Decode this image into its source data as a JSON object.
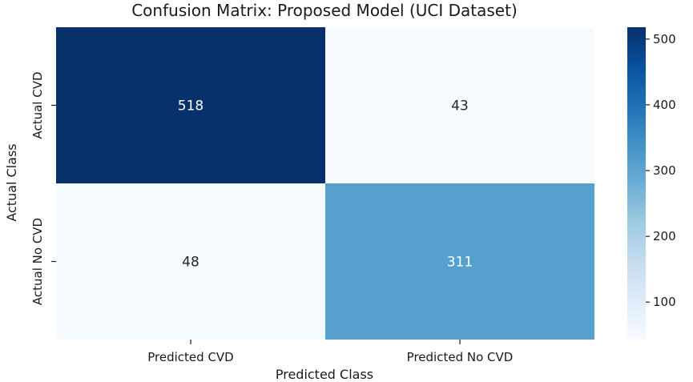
{
  "chart_data": {
    "type": "heatmap",
    "title": "Confusion Matrix: Proposed Model (UCI Dataset)",
    "xlabel": "Predicted Class",
    "ylabel": "Actual Class",
    "x_categories": [
      "Predicted CVD",
      "Predicted No CVD"
    ],
    "y_categories": [
      "Actual CVD",
      "Actual No CVD"
    ],
    "values": [
      [
        518,
        43
      ],
      [
        48,
        311
      ]
    ],
    "colormap": "Blues",
    "colorbar": {
      "min": 43,
      "max": 518,
      "ticks": [
        100,
        200,
        300,
        400,
        500
      ]
    },
    "colors": {
      "low": "#f7fbff",
      "high": "#08306b",
      "text_dark": "#262626",
      "text_light": "#ffffff"
    }
  }
}
